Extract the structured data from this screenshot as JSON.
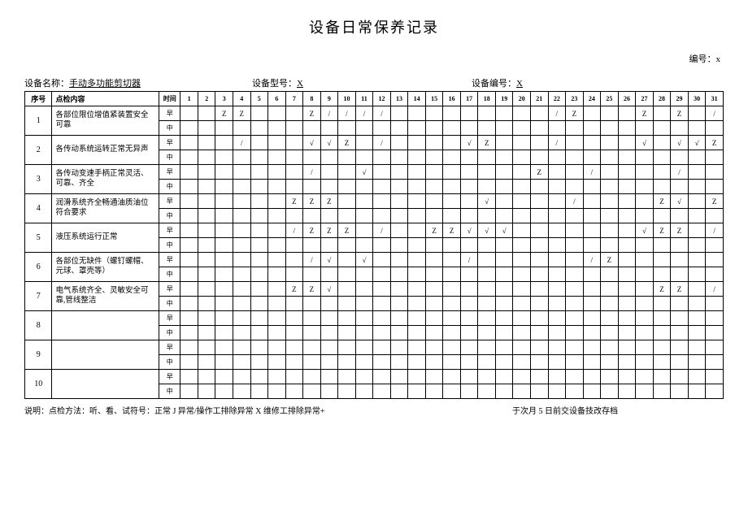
{
  "title": "设备日常保养记录",
  "doc_no_label": "编号：",
  "doc_no_value": "x",
  "header": {
    "equip_name_label": "设备名称：",
    "equip_name_value": "手动多功能剪切器",
    "equip_model_label": "设备型号：",
    "equip_model_value": "X",
    "equip_id_label": "设备编号：",
    "equip_id_value": "X"
  },
  "columns": {
    "seq": "序号",
    "content": "点检内容",
    "time": "时间",
    "days": [
      "1",
      "2",
      "3",
      "4",
      "5",
      "6",
      "7",
      "8",
      "9",
      "10",
      "11",
      "12",
      "13",
      "14",
      "15",
      "16",
      "17",
      "18",
      "19",
      "20",
      "21",
      "22",
      "23",
      "24",
      "25",
      "26",
      "27",
      "28",
      "29",
      "30",
      "31"
    ]
  },
  "time_labels": {
    "early": "早",
    "mid": "中"
  },
  "rows": [
    {
      "seq": "1",
      "content": "各部位限位增值紧装置安全可靠",
      "early": [
        "",
        "",
        "Z",
        "Z",
        "",
        "",
        "",
        "Z",
        "/",
        "/",
        "/",
        "/",
        "",
        "",
        "",
        "",
        "",
        "",
        "",
        "",
        "",
        "/",
        "Z",
        "",
        "",
        "",
        "Z",
        "",
        "Z",
        "",
        "/"
      ],
      "mid": [
        "",
        "",
        "",
        "",
        "",
        "",
        "",
        "",
        "",
        "",
        "",
        "",
        "",
        "",
        "",
        "",
        "",
        "",
        "",
        "",
        "",
        "",
        "",
        "",
        "",
        "",
        "",
        "",
        "",
        "",
        ""
      ]
    },
    {
      "seq": "2",
      "content": "各传动系统运转正常无异声",
      "early": [
        "",
        "",
        "",
        "/",
        "",
        "",
        "",
        "√",
        "√",
        "Z",
        "",
        "/",
        "",
        "",
        "",
        "",
        "√",
        "Z",
        "",
        "",
        "",
        "/",
        "",
        "",
        "",
        "",
        "√",
        "",
        "√",
        "√",
        "Z"
      ],
      "mid": [
        "",
        "",
        "",
        "",
        "",
        "",
        "",
        "",
        "",
        "",
        "",
        "",
        "",
        "",
        "",
        "",
        "",
        "",
        "",
        "",
        "",
        "",
        "",
        "",
        "",
        "",
        "",
        "",
        "",
        "",
        ""
      ]
    },
    {
      "seq": "3",
      "content": "各传动变速手柄正常灵活、可靠、齐全",
      "early": [
        "",
        "",
        "",
        "",
        "",
        "",
        "",
        "/",
        "",
        "",
        "√",
        "",
        "",
        "",
        "",
        "",
        "",
        "",
        "",
        "",
        "Z",
        "",
        "",
        "/",
        "",
        "",
        "",
        "",
        "/",
        "",
        ""
      ],
      "mid": [
        "",
        "",
        "",
        "",
        "",
        "",
        "",
        "",
        "",
        "",
        "",
        "",
        "",
        "",
        "",
        "",
        "",
        "",
        "",
        "",
        "",
        "",
        "",
        "",
        "",
        "",
        "",
        "",
        "",
        "",
        ""
      ]
    },
    {
      "seq": "4",
      "content": "润滑系统齐全畅通油质油位符合要求",
      "early": [
        "",
        "",
        "",
        "",
        "",
        "",
        "Z",
        "Z",
        "Z",
        "",
        "",
        "",
        "",
        "",
        "",
        "",
        "",
        "√",
        "",
        "",
        "",
        "",
        "/",
        "",
        "",
        "",
        "",
        "Z",
        "√",
        "",
        "Z"
      ],
      "mid": [
        "",
        "",
        "",
        "",
        "",
        "",
        "",
        "",
        "",
        "",
        "",
        "",
        "",
        "",
        "",
        "",
        "",
        "",
        "",
        "",
        "",
        "",
        "",
        "",
        "",
        "",
        "",
        "",
        "",
        "",
        ""
      ]
    },
    {
      "seq": "5",
      "content": "液压系统运行正常",
      "early": [
        "",
        "",
        "",
        "",
        "",
        "",
        "/",
        "Z",
        "Z",
        "Z",
        "",
        "/",
        "",
        "",
        "Z",
        "Z",
        "√",
        "√",
        "√",
        "",
        "",
        "",
        "",
        "",
        "",
        "",
        "√",
        "Z",
        "Z",
        "",
        "/"
      ],
      "mid": [
        "",
        "",
        "",
        "",
        "",
        "",
        "",
        "",
        "",
        "",
        "",
        "",
        "",
        "",
        "",
        "",
        "",
        "",
        "",
        "",
        "",
        "",
        "",
        "",
        "",
        "",
        "",
        "",
        "",
        "",
        ""
      ]
    },
    {
      "seq": "6",
      "content": "各部位无缺件（螺钉螺帽、元球、罩壳等）",
      "early": [
        "",
        "",
        "",
        "",
        "",
        "",
        "",
        "/",
        "√",
        "",
        "√",
        "",
        "",
        "",
        "",
        "",
        "/",
        "",
        "",
        "",
        "",
        "",
        "",
        "/",
        "Z",
        "",
        "",
        "",
        "",
        "",
        ""
      ],
      "mid": [
        "",
        "",
        "",
        "",
        "",
        "",
        "",
        "",
        "",
        "",
        "",
        "",
        "",
        "",
        "",
        "",
        "",
        "",
        "",
        "",
        "",
        "",
        "",
        "",
        "",
        "",
        "",
        "",
        "",
        "",
        ""
      ]
    },
    {
      "seq": "7",
      "content": "电气系统齐全、灵敏安全可靠,管线整洁",
      "early": [
        "",
        "",
        "",
        "",
        "",
        "",
        "Z",
        "Z",
        "√",
        "",
        "",
        "",
        "",
        "",
        "",
        "",
        "",
        "",
        "",
        "",
        "",
        "",
        "",
        "",
        "",
        "",
        "",
        "Z",
        "Z",
        "",
        "/"
      ],
      "mid": [
        "",
        "",
        "",
        "",
        "",
        "",
        "",
        "",
        "",
        "",
        "",
        "",
        "",
        "",
        "",
        "",
        "",
        "",
        "",
        "",
        "",
        "",
        "",
        "",
        "",
        "",
        "",
        "",
        "",
        "",
        ""
      ]
    },
    {
      "seq": "8",
      "content": "",
      "early": [
        "",
        "",
        "",
        "",
        "",
        "",
        "",
        "",
        "",
        "",
        "",
        "",
        "",
        "",
        "",
        "",
        "",
        "",
        "",
        "",
        "",
        "",
        "",
        "",
        "",
        "",
        "",
        "",
        "",
        "",
        ""
      ],
      "mid": [
        "",
        "",
        "",
        "",
        "",
        "",
        "",
        "",
        "",
        "",
        "",
        "",
        "",
        "",
        "",
        "",
        "",
        "",
        "",
        "",
        "",
        "",
        "",
        "",
        "",
        "",
        "",
        "",
        "",
        "",
        ""
      ]
    },
    {
      "seq": "9",
      "content": "",
      "early": [
        "",
        "",
        "",
        "",
        "",
        "",
        "",
        "",
        "",
        "",
        "",
        "",
        "",
        "",
        "",
        "",
        "",
        "",
        "",
        "",
        "",
        "",
        "",
        "",
        "",
        "",
        "",
        "",
        "",
        "",
        ""
      ],
      "mid": [
        "",
        "",
        "",
        "",
        "",
        "",
        "",
        "",
        "",
        "",
        "",
        "",
        "",
        "",
        "",
        "",
        "",
        "",
        "",
        "",
        "",
        "",
        "",
        "",
        "",
        "",
        "",
        "",
        "",
        "",
        ""
      ]
    },
    {
      "seq": "10",
      "content": "",
      "early": [
        "",
        "",
        "",
        "",
        "",
        "",
        "",
        "",
        "",
        "",
        "",
        "",
        "",
        "",
        "",
        "",
        "",
        "",
        "",
        "",
        "",
        "",
        "",
        "",
        "",
        "",
        "",
        "",
        "",
        "",
        ""
      ],
      "mid": [
        "",
        "",
        "",
        "",
        "",
        "",
        "",
        "",
        "",
        "",
        "",
        "",
        "",
        "",
        "",
        "",
        "",
        "",
        "",
        "",
        "",
        "",
        "",
        "",
        "",
        "",
        "",
        "",
        "",
        "",
        ""
      ]
    }
  ],
  "footer": {
    "left": "说明：点检方法：听、看、试符号：正常 J 异常/操作工排除异常 X 维修工排除异常+",
    "right": "于次月 5 日前交设备技改存档"
  }
}
